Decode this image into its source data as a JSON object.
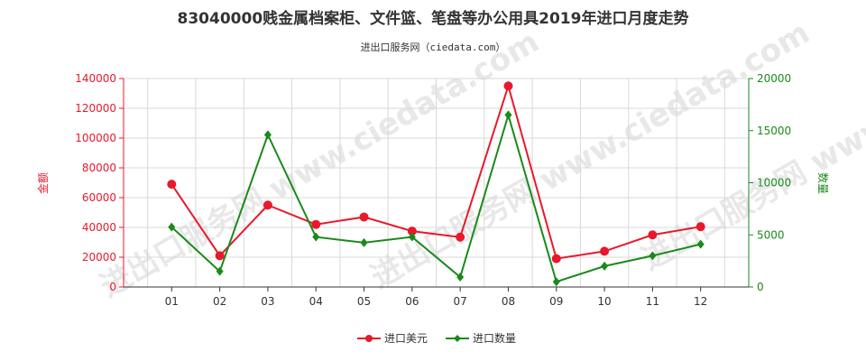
{
  "watermark": "进出口服务网 www.ciedata.com",
  "chart_data": {
    "type": "line",
    "title": "83040000贱金属档案柜、文件篮、笔盘等办公用具2019年进口月度走势",
    "subtitle": "进出口服务网（ciedata.com）",
    "categories": [
      "01",
      "02",
      "03",
      "04",
      "05",
      "06",
      "07",
      "08",
      "09",
      "10",
      "11",
      "12"
    ],
    "series": [
      {
        "name": "进口美元",
        "axis": "left",
        "color": "#e8192c",
        "values": [
          69000,
          21000,
          55000,
          42000,
          47000,
          37500,
          33500,
          135000,
          19000,
          24000,
          35000,
          40500
        ]
      },
      {
        "name": "进口数量",
        "axis": "right",
        "color": "#1a8a1a",
        "values": [
          5750,
          1500,
          14600,
          4800,
          4250,
          4800,
          950,
          16500,
          500,
          2000,
          3000,
          4100
        ]
      }
    ],
    "y_left": {
      "label": "金额",
      "min": 0,
      "max": 140000,
      "step": 20000,
      "color": "#e8192c"
    },
    "y_right": {
      "label": "数量",
      "min": 0,
      "max": 20000,
      "step": 5000,
      "color": "#1a8a1a"
    },
    "grid": true,
    "legend_position": "bottom"
  }
}
